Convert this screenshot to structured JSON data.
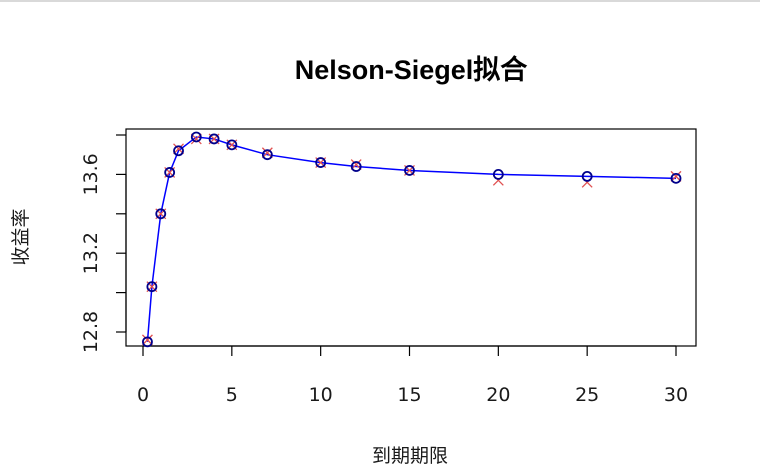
{
  "chart_data": {
    "type": "line",
    "title": "Nelson-Siegel拟合",
    "xlabel": "到期期限",
    "ylabel": "收益率",
    "xlim": [
      0,
      30
    ],
    "ylim": [
      12.8,
      13.8
    ],
    "xticks": [
      "0",
      "5",
      "10",
      "15",
      "20",
      "25",
      "30"
    ],
    "yticks": [
      "12.8",
      "13.2",
      "13.6"
    ],
    "grid": false,
    "legend": "none",
    "colors": {
      "fit_line": "#0000ff",
      "observed_circle": "#00008b",
      "fitted_cross": "#e05050",
      "axis": "#000000"
    },
    "series": [
      {
        "marker": "circle",
        "x": [
          0.25,
          0.5,
          1,
          1.5,
          2,
          3,
          4,
          5,
          7,
          10,
          12,
          15,
          20,
          25,
          30
        ],
        "y": [
          12.75,
          13.03,
          13.4,
          13.61,
          13.72,
          13.79,
          13.78,
          13.75,
          13.7,
          13.66,
          13.64,
          13.62,
          13.6,
          13.59,
          13.58
        ]
      },
      {
        "marker": "cross",
        "x": [
          0.25,
          0.5,
          1,
          1.5,
          2,
          3,
          4,
          5,
          7,
          10,
          12,
          15,
          20,
          25,
          30
        ],
        "y": [
          12.76,
          13.03,
          13.4,
          13.61,
          13.73,
          13.78,
          13.78,
          13.75,
          13.71,
          13.66,
          13.65,
          13.62,
          13.57,
          13.56,
          13.59
        ]
      }
    ]
  }
}
